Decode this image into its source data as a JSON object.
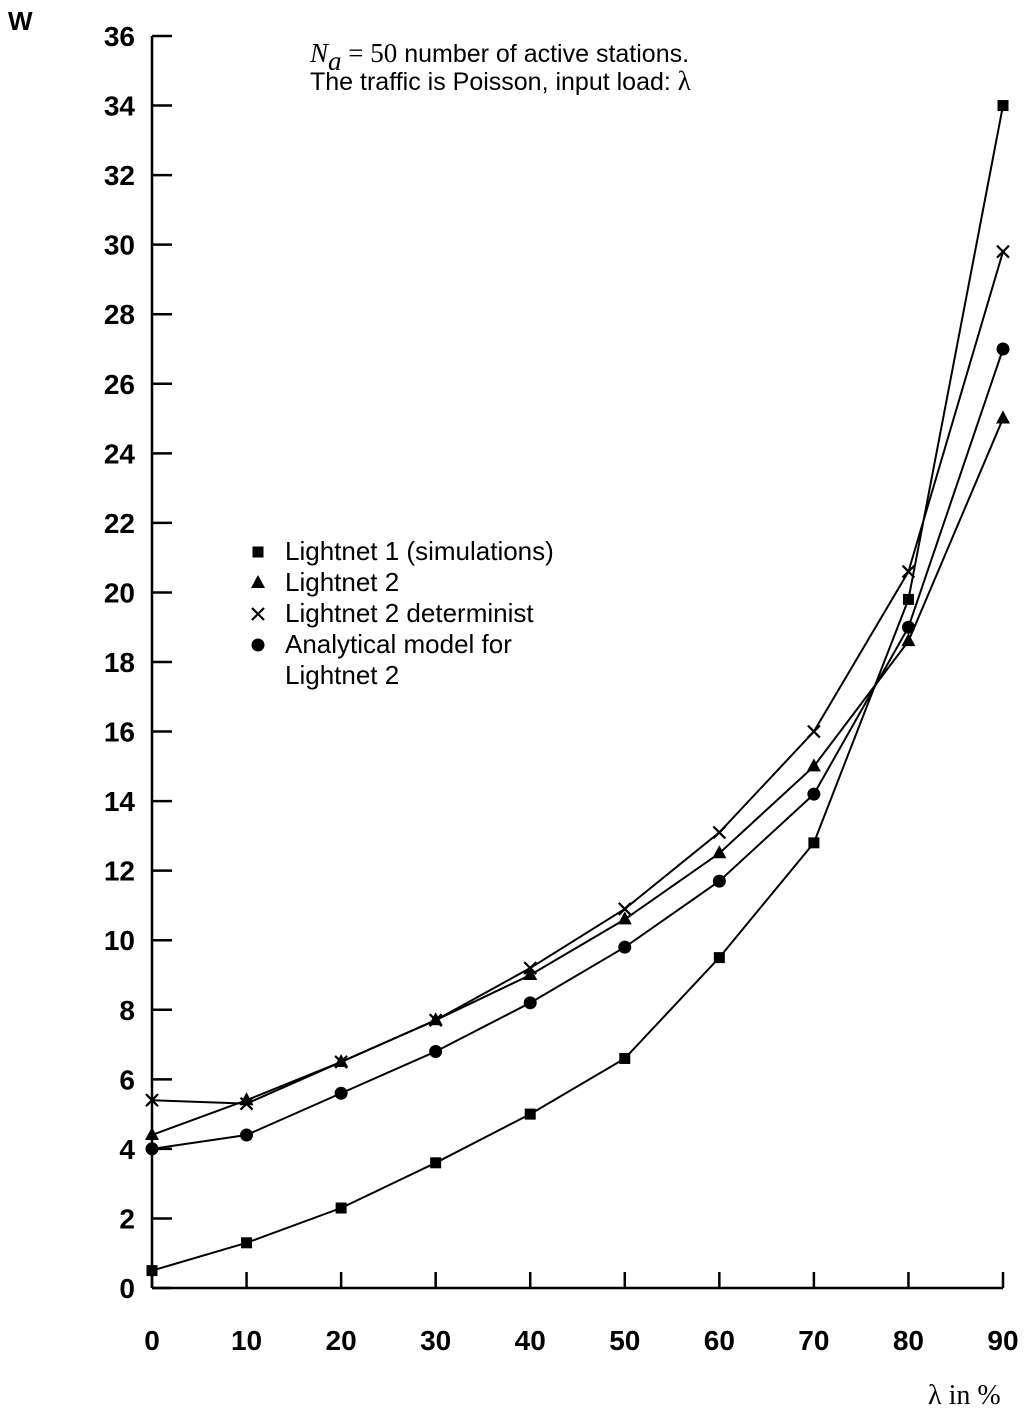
{
  "chart_data": {
    "type": "line",
    "ylabel": "W",
    "xlabel": "λ in %",
    "x": [
      0,
      10,
      20,
      30,
      40,
      50,
      60,
      70,
      80,
      90
    ],
    "xlim": [
      0,
      90
    ],
    "ylim": [
      0,
      36
    ],
    "xticks": [
      "0",
      "10",
      "20",
      "30",
      "40",
      "50",
      "60",
      "70",
      "80",
      "90"
    ],
    "yticks": [
      "0",
      "2",
      "4",
      "6",
      "8",
      "10",
      "12",
      "14",
      "16",
      "18",
      "20",
      "22",
      "24",
      "26",
      "28",
      "30",
      "32",
      "34",
      "36"
    ],
    "grid": false,
    "legend_position": "center-left",
    "annotation": {
      "line1_var": "N",
      "line1_sub": "a",
      "line1_eq": " = 50",
      "line1_text": " number of active stations.",
      "line2_text": "The traffic is Poisson, input load: ",
      "line2_symbol": "λ"
    },
    "series": [
      {
        "name": "Lightnet 1 (simulations)",
        "marker": "square",
        "values": [
          0.5,
          1.3,
          2.3,
          3.6,
          5.0,
          6.6,
          9.5,
          12.8,
          19.8,
          34.0
        ]
      },
      {
        "name": "Lightnet 2",
        "marker": "triangle",
        "values": [
          4.4,
          5.4,
          6.5,
          7.7,
          9.0,
          10.6,
          12.5,
          15.0,
          18.6,
          25.0
        ]
      },
      {
        "name": "Lightnet 2 determinist",
        "marker": "cross",
        "values": [
          5.4,
          5.3,
          6.5,
          7.7,
          9.2,
          10.9,
          13.1,
          16.0,
          20.6,
          29.8
        ]
      },
      {
        "name": "Analytical model for",
        "name_line2": "Lightnet 2",
        "marker": "circle",
        "values": [
          4.0,
          4.4,
          5.6,
          6.8,
          8.2,
          9.8,
          11.7,
          14.2,
          19.0,
          27.0
        ]
      }
    ]
  }
}
